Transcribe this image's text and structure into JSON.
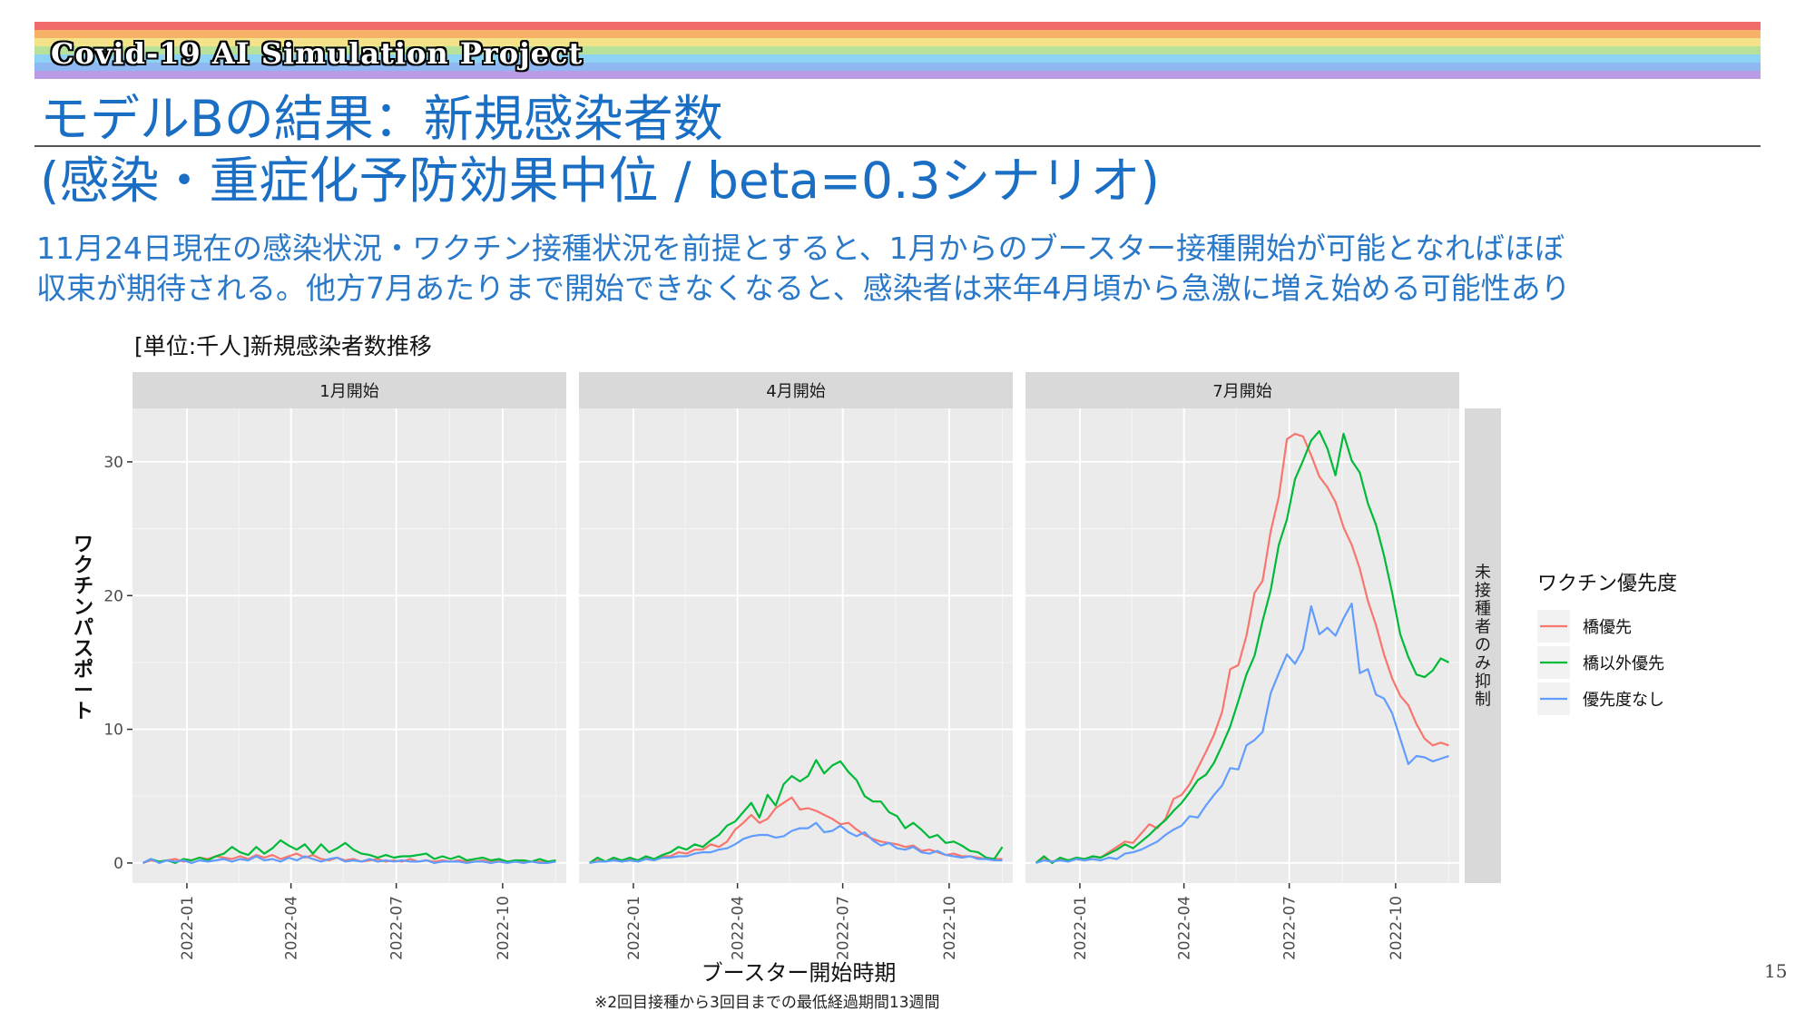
{
  "header": {
    "project_title": "Covid-19 AI Simulation Project",
    "title": "モデルBの結果：新規感染者数",
    "subtitle": "(感染・重症化予防効果中位 / beta=0.3シナリオ)",
    "description": [
      "11月24日現在の感染状況・ワクチン接種状況を前提とすると、1月からのブースター接種開始が可能となればほぼ",
      "収束が期待される。他方7月あたりまで開始できなくなると、感染者は来年4月頃から急激に増え始める可能性あり"
    ],
    "rainbow_colors": [
      "#f26b6b",
      "#f7b267",
      "#f4e38b",
      "#b8e29a",
      "#8fd3f4",
      "#8fb7f2",
      "#b99be6"
    ]
  },
  "footer": {
    "page_number": "15",
    "footnote": "※2回目接種から3回目までの最低経過期間13週間"
  },
  "chart_data": {
    "type": "line",
    "title": "[単位:千人]新規感染者数推移",
    "xlabel": "ブースター開始時期",
    "ylabel": "ワクチンパスポート",
    "row_strip": "未接種者のみ抑制",
    "ylim": [
      -1.5,
      34
    ],
    "yticks": [
      0,
      10,
      20,
      30
    ],
    "xticks": [
      "2022-01",
      "2022-04",
      "2022-07",
      "2022-10"
    ],
    "xrange": [
      "2021-11-15",
      "2022-11-25"
    ],
    "x_start": "2021-11-24",
    "x_interval_days": 7,
    "grid": true,
    "legend": {
      "title": "ワクチン優先度",
      "position": "right",
      "entries": [
        "橋優先",
        "橋以外優先",
        "優先度なし"
      ]
    },
    "colors": [
      "#f8766d",
      "#00ba38",
      "#619cff"
    ],
    "panels": [
      {
        "label": "1月開始",
        "series": [
          {
            "name": "橋優先",
            "values": [
              0,
              0.2,
              0.1,
              0.2,
              0.3,
              0.1,
              0.2,
              0.4,
              0.3,
              0.5,
              0.4,
              0.3,
              0.5,
              0.3,
              0.6,
              0.4,
              0.6,
              0.3,
              0.5,
              0.7,
              0.4,
              0.6,
              0.3,
              0.2,
              0.4,
              0.2,
              0.3,
              0.1,
              0.2,
              0.3,
              0.1,
              0.2,
              0.1,
              0.3,
              0.1,
              0.2,
              0.1,
              0.2,
              0.1,
              0.2,
              0.1,
              0.1,
              0.2,
              0.1,
              0.2,
              0.1,
              0.1,
              0.1,
              0.1,
              0.1,
              0.1,
              0.1
            ]
          },
          {
            "name": "橋以外優先",
            "values": [
              0,
              0.3,
              0.1,
              0.2,
              0.0,
              0.3,
              0.2,
              0.4,
              0.2,
              0.5,
              0.7,
              1.2,
              0.8,
              0.6,
              1.2,
              0.7,
              1.1,
              1.7,
              1.3,
              1.0,
              1.4,
              0.7,
              1.4,
              0.8,
              1.1,
              1.5,
              1.0,
              0.7,
              0.6,
              0.4,
              0.6,
              0.4,
              0.5,
              0.5,
              0.6,
              0.7,
              0.3,
              0.5,
              0.3,
              0.5,
              0.2,
              0.3,
              0.4,
              0.2,
              0.3,
              0.1,
              0.2,
              0.2,
              0.1,
              0.3,
              0.1,
              0.2
            ]
          },
          {
            "name": "優先度なし",
            "values": [
              0,
              0.3,
              0.0,
              0.2,
              0.1,
              0.2,
              0.0,
              0.2,
              0.1,
              0.2,
              0.3,
              0.1,
              0.3,
              0.2,
              0.5,
              0.2,
              0.3,
              0.1,
              0.4,
              0.2,
              0.5,
              0.3,
              0.1,
              0.3,
              0.4,
              0.1,
              0.2,
              0.1,
              0.3,
              0.1,
              0.2,
              0.1,
              0.2,
              0.1,
              0.1,
              0.2,
              0.0,
              0.1,
              0.1,
              0.1,
              0.0,
              0.1,
              0.1,
              0.0,
              0.1,
              0.0,
              0.1,
              0.0,
              0.1,
              0.0,
              0.0,
              0.1
            ]
          }
        ]
      },
      {
        "label": "4月開始",
        "series": [
          {
            "name": "橋優先",
            "values": [
              0,
              0.2,
              0.1,
              0.3,
              0.1,
              0.3,
              0.2,
              0.4,
              0.2,
              0.5,
              0.5,
              0.8,
              0.7,
              1.0,
              1.0,
              1.4,
              1.2,
              1.6,
              2.5,
              3.0,
              3.6,
              3.0,
              3.3,
              4.1,
              4.5,
              4.9,
              4.0,
              4.1,
              3.9,
              3.6,
              3.3,
              2.9,
              3.0,
              2.5,
              2.1,
              1.8,
              1.6,
              1.5,
              1.4,
              1.2,
              1.3,
              0.9,
              1.0,
              0.8,
              0.6,
              0.7,
              0.5,
              0.5,
              0.4,
              0.3,
              0.3,
              0.3
            ]
          },
          {
            "name": "橋以外優先",
            "values": [
              0,
              0.4,
              0.1,
              0.4,
              0.2,
              0.4,
              0.2,
              0.5,
              0.3,
              0.6,
              0.8,
              1.2,
              1.0,
              1.4,
              1.2,
              1.7,
              2.1,
              2.8,
              3.1,
              3.8,
              4.5,
              3.4,
              5.1,
              4.3,
              5.9,
              6.5,
              6.1,
              6.5,
              7.7,
              6.7,
              7.3,
              7.6,
              6.8,
              6.2,
              5.0,
              4.6,
              4.6,
              3.8,
              3.5,
              2.6,
              3.0,
              2.5,
              1.9,
              2.1,
              1.5,
              1.6,
              1.3,
              0.9,
              0.8,
              0.4,
              0.3,
              1.2
            ]
          },
          {
            "name": "優先度なし",
            "values": [
              0,
              0.1,
              0.1,
              0.2,
              0.1,
              0.2,
              0.1,
              0.3,
              0.2,
              0.4,
              0.4,
              0.5,
              0.5,
              0.7,
              0.8,
              0.8,
              1.0,
              1.1,
              1.4,
              1.8,
              2.0,
              2.1,
              2.1,
              1.9,
              2.0,
              2.4,
              2.6,
              2.6,
              3.0,
              2.3,
              2.4,
              2.8,
              2.3,
              2.0,
              2.3,
              1.7,
              1.3,
              1.5,
              1.1,
              1.0,
              1.2,
              0.8,
              0.7,
              0.9,
              0.6,
              0.5,
              0.4,
              0.5,
              0.3,
              0.3,
              0.2,
              0.2
            ]
          }
        ]
      },
      {
        "label": "7月開始",
        "series": [
          {
            "name": "橋優先",
            "values": [
              0,
              0.4,
              0.1,
              0.3,
              0.2,
              0.3,
              0.2,
              0.5,
              0.4,
              0.8,
              1.2,
              1.6,
              1.5,
              2.2,
              2.9,
              2.6,
              3.3,
              4.8,
              5.1,
              5.9,
              7.1,
              8.3,
              9.6,
              11.3,
              14.5,
              14.8,
              17.0,
              20.2,
              21.1,
              24.8,
              27.4,
              31.7,
              32.1,
              31.9,
              30.5,
              28.9,
              28.1,
              27.0,
              25.1,
              23.8,
              22.0,
              19.6,
              17.8,
              15.6,
              13.8,
              12.5,
              11.8,
              10.4,
              9.3,
              8.8,
              9.0,
              8.8
            ]
          },
          {
            "name": "橋以外優先",
            "values": [
              0,
              0.5,
              0.0,
              0.4,
              0.2,
              0.4,
              0.3,
              0.5,
              0.4,
              0.7,
              1.0,
              1.4,
              1.1,
              1.6,
              2.1,
              2.7,
              3.2,
              3.9,
              4.5,
              5.3,
              6.2,
              6.6,
              7.5,
              8.8,
              10.2,
              12.1,
              14.1,
              15.5,
              18.1,
              20.4,
              23.8,
              25.7,
              28.7,
              30.1,
              31.6,
              32.3,
              31.0,
              29.0,
              32.1,
              30.1,
              29.2,
              26.9,
              25.3,
              23.0,
              20.2,
              17.1,
              15.4,
              14.1,
              13.9,
              14.4,
              15.3,
              15.0
            ]
          },
          {
            "name": "優先度なし",
            "values": [
              0,
              0.2,
              0.1,
              0.2,
              0.1,
              0.3,
              0.2,
              0.3,
              0.2,
              0.4,
              0.3,
              0.7,
              0.8,
              1.0,
              1.3,
              1.6,
              2.1,
              2.5,
              2.8,
              3.5,
              3.4,
              4.3,
              5.1,
              5.8,
              7.1,
              7.0,
              8.8,
              9.2,
              9.8,
              12.7,
              14.2,
              15.6,
              14.9,
              16.0,
              19.2,
              17.1,
              17.6,
              17.0,
              18.3,
              19.4,
              14.2,
              14.5,
              12.6,
              12.3,
              11.2,
              9.3,
              7.4,
              8.0,
              7.9,
              7.6,
              7.8,
              8.0
            ]
          }
        ]
      }
    ]
  }
}
